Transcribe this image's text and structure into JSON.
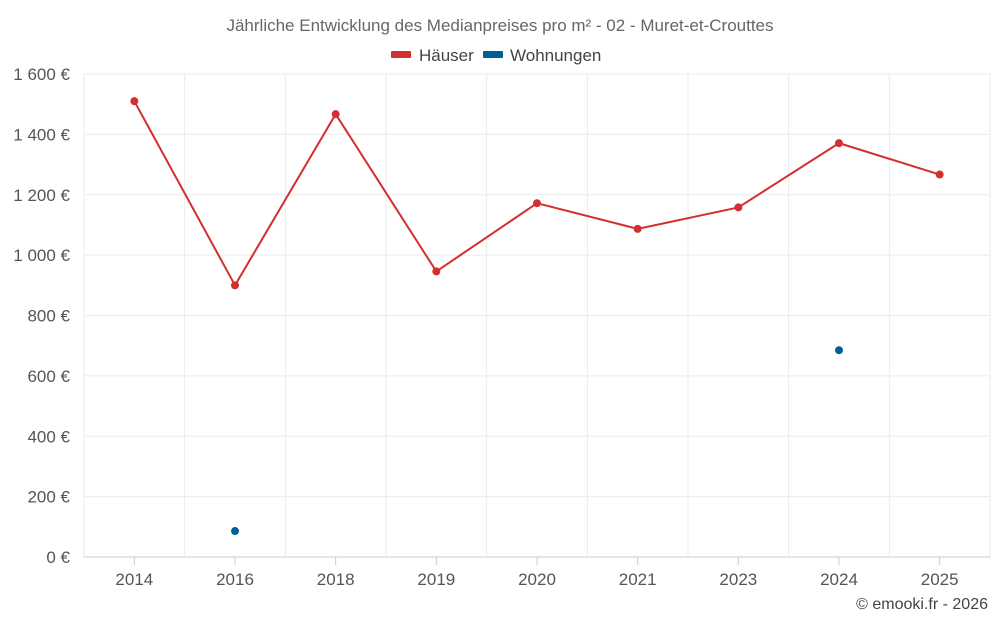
{
  "chart_data": {
    "type": "line",
    "title": "Jährliche Entwicklung des Medianpreises pro m² - 02 - Muret-et-Crouttes",
    "categories": [
      "2014",
      "2016",
      "2018",
      "2019",
      "2020",
      "2021",
      "2023",
      "2024",
      "2025"
    ],
    "series": [
      {
        "name": "Häuser",
        "color": "#d32f2f",
        "values": [
          1510,
          900,
          1467,
          946,
          1172,
          1087,
          1158,
          1371,
          1267
        ]
      },
      {
        "name": "Wohnungen",
        "color": "#005f99",
        "values": [
          null,
          86,
          null,
          null,
          null,
          null,
          null,
          685,
          null
        ]
      }
    ],
    "ylim": [
      0,
      1600
    ],
    "yticks": [
      0,
      200,
      400,
      600,
      800,
      1000,
      1200,
      1400,
      1600
    ],
    "ytick_labels": [
      "0 €",
      "200 €",
      "400 €",
      "600 €",
      "800 €",
      "1 000 €",
      "1 200 €",
      "1 400 €",
      "1 600 €"
    ],
    "xlabel": "",
    "ylabel": "",
    "grid": true,
    "legend": "top-center",
    "credit": "© emooki.fr - 2026"
  }
}
